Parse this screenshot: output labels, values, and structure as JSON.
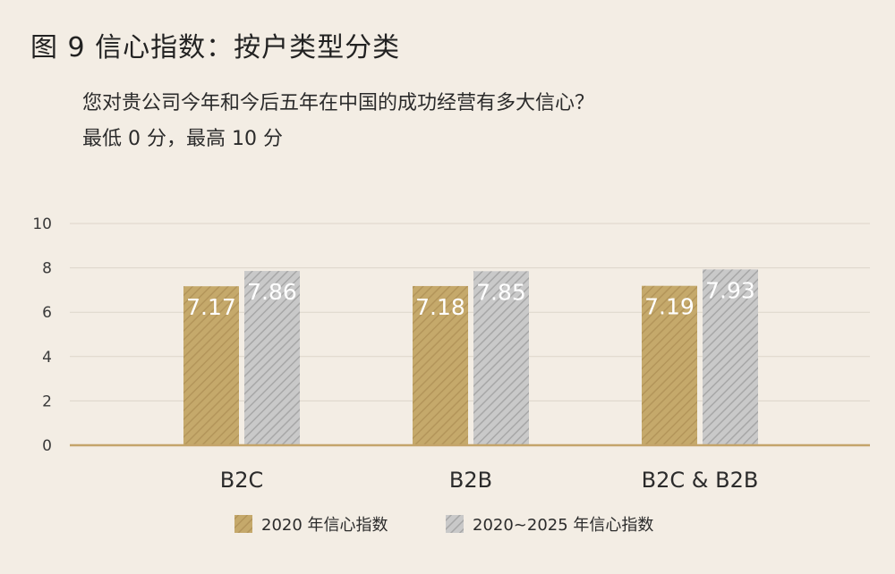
{
  "title": "图 9  信心指数：按户类型分类",
  "subtitle_lines": [
    "您对贵公司今年和今后五年在中国的成功经营有多大信心？",
    "最低 0 分，最高 10 分"
  ],
  "colors": {
    "background": "#f3ede4",
    "series_2020": "#c5a96b",
    "series_2020_stripe": "#b3955a",
    "series_2025": "#c9c9c9",
    "series_2025_stripe": "#a7a7a7",
    "gridline": "#dcd5ca",
    "baseline": "#c4a46a"
  },
  "chart_data": {
    "type": "bar",
    "categories": [
      "B2C",
      "B2B",
      "B2C & B2B"
    ],
    "series": [
      {
        "name": "2020 年信心指数",
        "values": [
          7.17,
          7.18,
          7.19
        ],
        "labels": [
          "7.17",
          "7.18",
          "7.19"
        ]
      },
      {
        "name": "2020~2025 年信心指数",
        "values": [
          7.86,
          7.85,
          7.93
        ],
        "labels": [
          "7.86",
          "7.85",
          "7.93"
        ]
      }
    ],
    "ylim": [
      0,
      10
    ],
    "yticks": [
      0,
      2,
      4,
      6,
      8,
      10
    ],
    "ytick_labels": [
      "0",
      "2",
      "4",
      "6",
      "8",
      "10"
    ],
    "grid": true,
    "legend_position": "bottom"
  }
}
